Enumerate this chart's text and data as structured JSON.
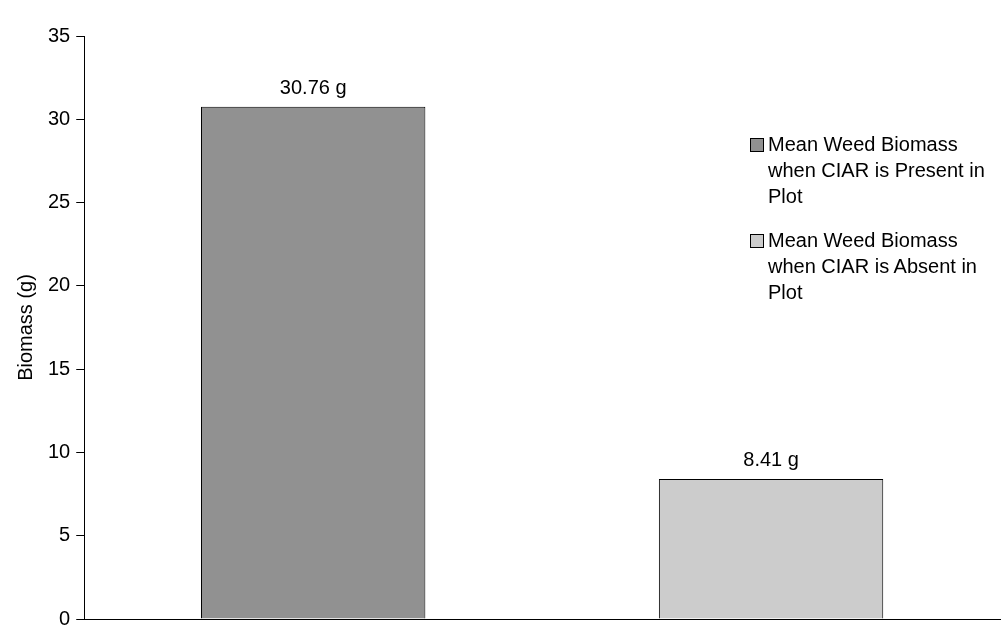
{
  "chart_data": {
    "type": "bar",
    "ylabel": "Biomass (g)",
    "categories": [
      null,
      null
    ],
    "series": [
      {
        "name": "Mean Weed Biomass when CIAR is Present in Plot",
        "color": "#919191",
        "values": [
          30.76,
          null
        ],
        "value_labels": [
          "30.76 g",
          null
        ]
      },
      {
        "name": "Mean Weed Biomass when CIAR is Absent in Plot",
        "color": "#cccccc",
        "values": [
          null,
          8.41
        ],
        "value_labels": [
          null,
          "8.41 g"
        ]
      }
    ],
    "ylim": [
      0,
      35
    ],
    "yticks": [
      0,
      5,
      10,
      15,
      20,
      25,
      30,
      35
    ],
    "grid": false,
    "legend": "top right"
  }
}
